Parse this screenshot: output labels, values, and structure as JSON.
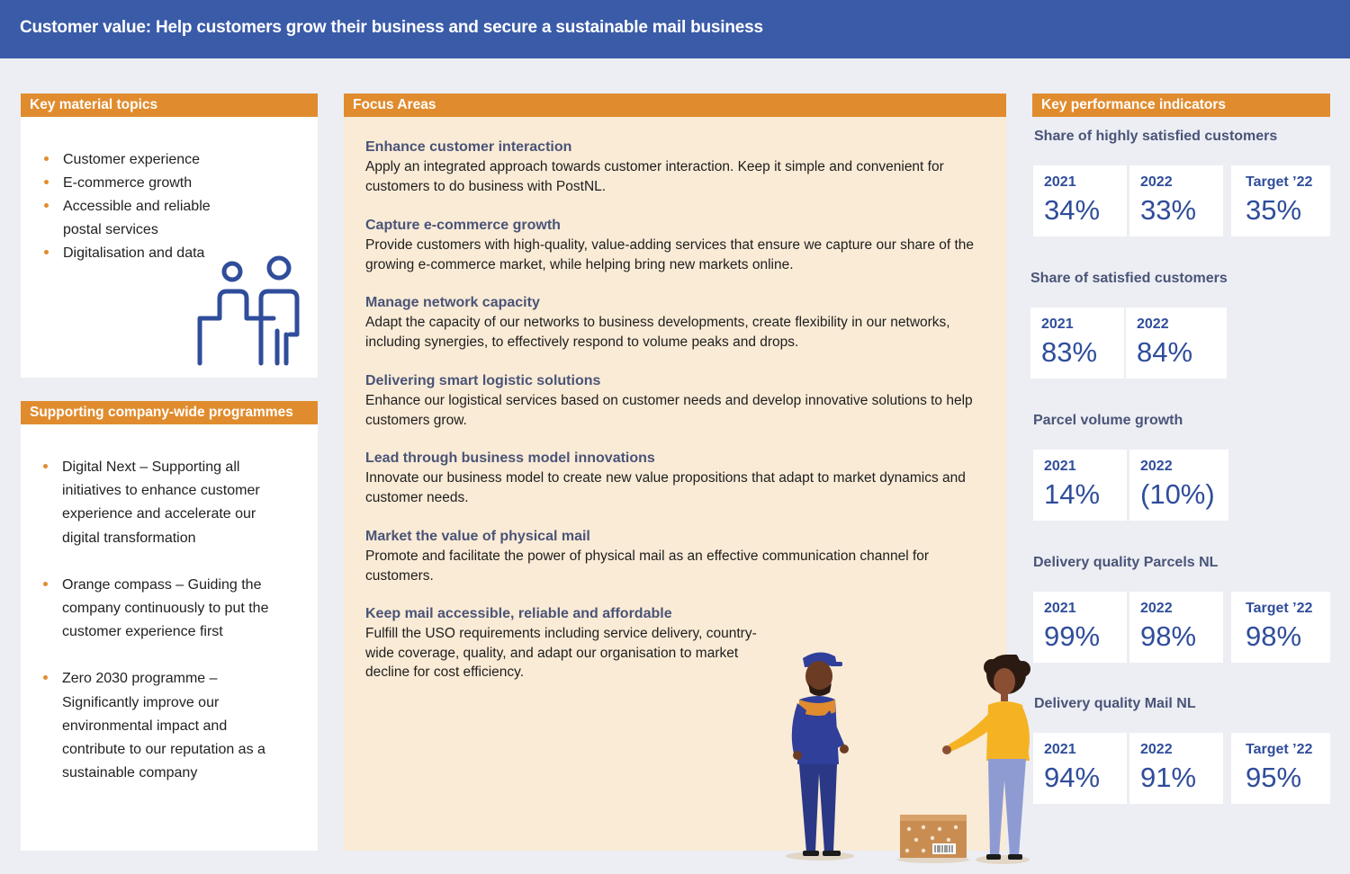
{
  "header": {
    "title": "Customer value: Help customers grow their business and secure a sustainable mail business"
  },
  "topics": {
    "heading": "Key material topics",
    "items": [
      "Customer experience",
      "E-commerce growth",
      "Accessible and reliable postal services",
      "Digitalisation and data"
    ]
  },
  "programmes": {
    "heading": "Supporting company-wide programmes",
    "items": [
      "Digital Next – Supporting all initiatives to enhance customer experience and accelerate our digital transformation",
      "Orange compass – Guiding the company continuously to put the customer experience first",
      "Zero 2030 programme – Significantly improve our environmental impact and contribute to our reputation as a sustainable company"
    ]
  },
  "focus": {
    "heading": "Focus Areas",
    "items": [
      {
        "title": "Enhance customer interaction",
        "text": "Apply an integrated approach towards customer interaction. Keep it simple and convenient for customers to do business with PostNL."
      },
      {
        "title": "Capture e-commerce growth",
        "text": "Provide customers with high-quality, value-adding services that ensure we capture our share of the growing e-commerce market, while helping bring new markets online."
      },
      {
        "title": "Manage network capacity",
        "text": "Adapt the capacity of our networks to business developments, create flexibility in our networks, including synergies, to effectively respond to volume peaks and drops."
      },
      {
        "title": "Delivering smart logistic solutions",
        "text": "Enhance our logistical services based on customer needs and develop innovative solutions to help customers grow."
      },
      {
        "title": "Lead through business model innovations",
        "text": "Innovate our business model to create new value propositions that adapt to market dynamics and customer needs."
      },
      {
        "title": "Market the value of physical mail",
        "text": "Promote and facilitate the power of physical mail as an effective communication channel for customers."
      },
      {
        "title": "Keep mail accessible, reliable and affordable",
        "text": "Fulfill the USO requirements including service delivery, country-wide coverage, quality, and adapt our organisation to market decline for cost efficiency."
      }
    ]
  },
  "kpi": {
    "heading": "Key performance indicators",
    "groups": [
      {
        "title": "Share of highly satisfied customers",
        "values": [
          {
            "label": "2021",
            "value": "34%"
          },
          {
            "label": "2022",
            "value": "33%"
          },
          {
            "label": "Target ’22",
            "value": "35%"
          }
        ]
      },
      {
        "title": "Share of satisfied customers",
        "values": [
          {
            "label": "2021",
            "value": "83%"
          },
          {
            "label": "2022",
            "value": "84%"
          }
        ]
      },
      {
        "title": "Parcel volume growth",
        "values": [
          {
            "label": "2021",
            "value": "14%"
          },
          {
            "label": "2022",
            "value": "(10%)"
          }
        ]
      },
      {
        "title": "Delivery quality Parcels NL",
        "values": [
          {
            "label": "2021",
            "value": "99%"
          },
          {
            "label": "2022",
            "value": "98%"
          },
          {
            "label": "Target ’22",
            "value": "98%"
          }
        ]
      },
      {
        "title": "Delivery quality Mail NL",
        "values": [
          {
            "label": "2021",
            "value": "94%"
          },
          {
            "label": "2022",
            "value": "91%"
          },
          {
            "label": "Target ’22",
            "value": "95%"
          }
        ]
      }
    ]
  },
  "colors": {
    "header": "#3a5ba8",
    "accent": "#e08c2e",
    "kpi_text": "#2f4d9b",
    "focus_bg": "#faebd6"
  },
  "icons": [
    "people-at-counter-icon",
    "courier-illustration",
    "customer-illustration",
    "parcel-box-icon"
  ]
}
